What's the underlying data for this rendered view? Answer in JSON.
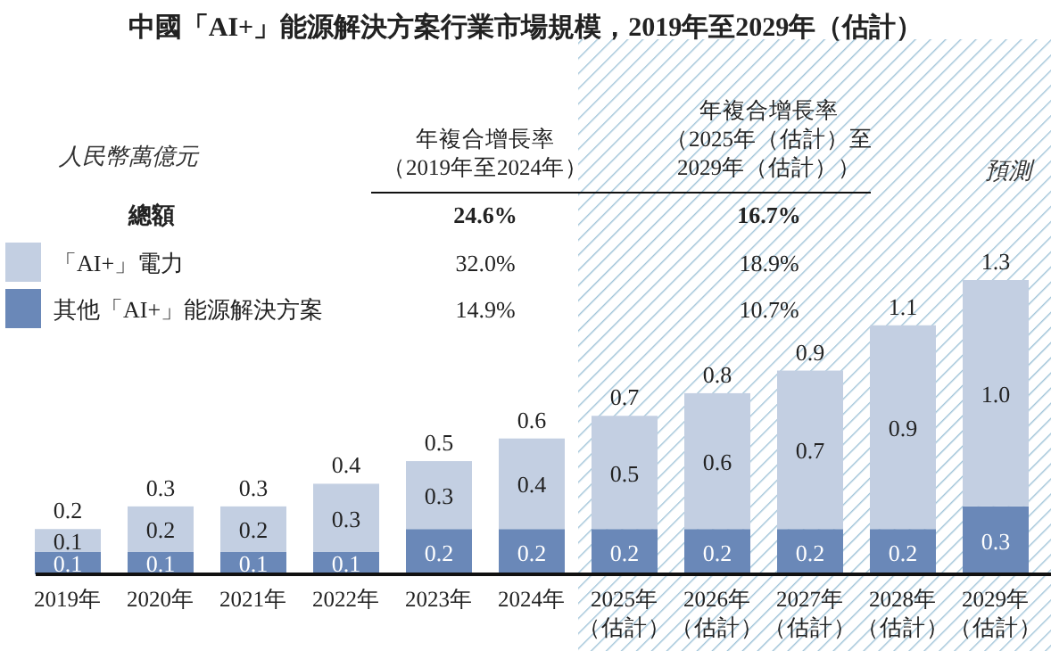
{
  "chart_data": {
    "type": "bar",
    "stacked": true,
    "title": "中國「AI+」能源解決方案行業市場規模，2019年至2029年（估計）",
    "categories": [
      "2019年",
      "2020年",
      "2021年",
      "2022年",
      "2023年",
      "2024年",
      "2025年（估計）",
      "2026年（估計）",
      "2027年（估計）",
      "2028年（估計）",
      "2029年（估計）"
    ],
    "series": [
      {
        "name": "其他「AI+」能源解決方案",
        "color": "#6a88b8",
        "values": [
          0.1,
          0.1,
          0.1,
          0.1,
          0.2,
          0.2,
          0.2,
          0.2,
          0.2,
          0.2,
          0.3
        ],
        "value_labels": [
          "0.1",
          "0.1",
          "0.1",
          "0.1",
          "0.2",
          "0.2",
          "0.2",
          "0.2",
          "0.2",
          "0.2",
          "0.3"
        ]
      },
      {
        "name": "「AI+」電力",
        "color": "#c3cfe2",
        "values": [
          0.1,
          0.2,
          0.2,
          0.3,
          0.3,
          0.4,
          0.5,
          0.6,
          0.7,
          0.9,
          1.0
        ],
        "value_labels": [
          "0.1",
          "0.2",
          "0.2",
          "0.3",
          "0.3",
          "0.4",
          "0.5",
          "0.6",
          "0.7",
          "0.9",
          "1.0"
        ]
      }
    ],
    "totals": [
      "0.2",
      "0.3",
      "0.3",
      "0.4",
      "0.5",
      "0.6",
      "0.7",
      "0.8",
      "0.9",
      "1.1",
      "1.3"
    ],
    "legend": "top left",
    "bands": [
      {
        "axis": "x",
        "from": "2025年（估計）",
        "to": "2029年（估計）",
        "label": "預測",
        "color": "#9fc3d8"
      }
    ],
    "annotations": [
      "人民幣萬億元",
      "年複合增長率（2019年至2024年）",
      "年複合增長率（2025年（估計）至2029年（估計））",
      "總額",
      "24.6%",
      "16.7%",
      "32.0%",
      "18.9%",
      "14.9%",
      "10.7%"
    ]
  }
}
